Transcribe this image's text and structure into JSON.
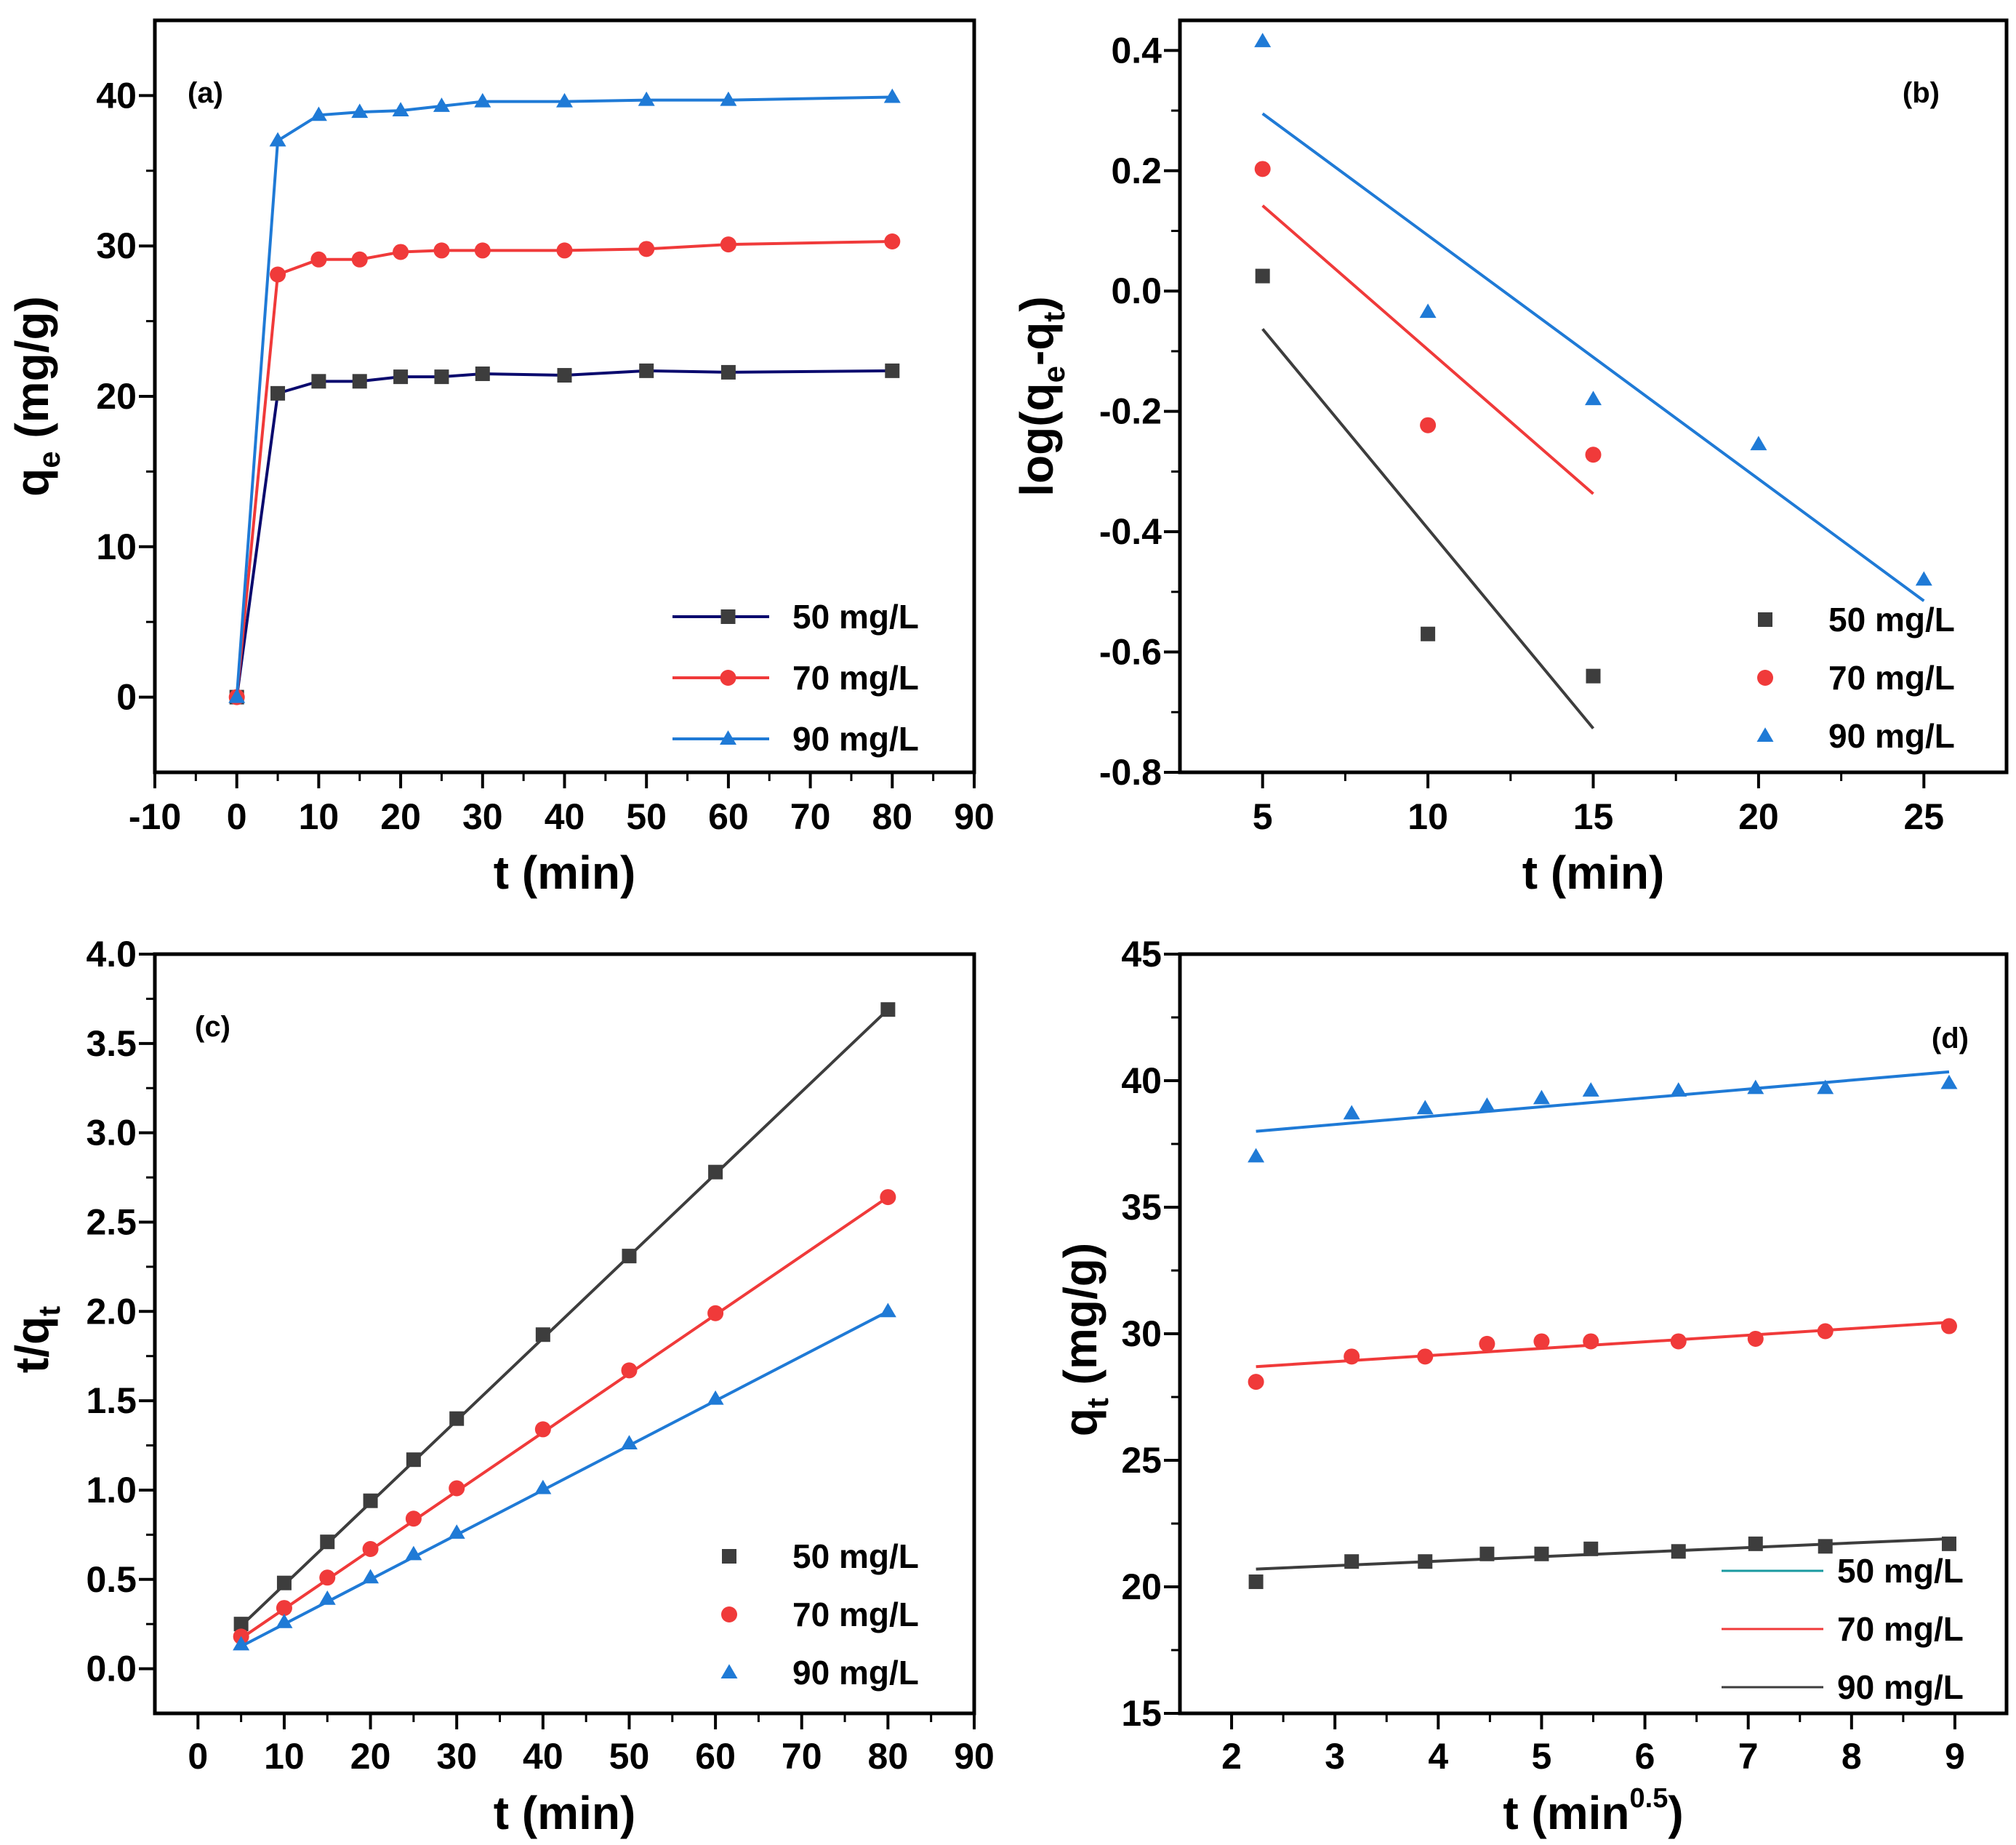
{
  "colors": {
    "black": "#3d3d3d",
    "navy": "#0a0a6e",
    "red": "#f03a3a",
    "blue": "#1f7ad6",
    "teal": "#1a9aa0"
  },
  "chart_data": [
    {
      "panel": "(a)",
      "type": "line",
      "xlabel": "t (min)",
      "ylabel": {
        "main": "q",
        "sub": "e",
        "rest": " (mg/g)"
      },
      "xlim": [
        -10,
        90
      ],
      "ylim": [
        -5,
        45
      ],
      "xticks": [
        "-10",
        "0",
        "10",
        "20",
        "30",
        "40",
        "50",
        "60",
        "70",
        "80",
        "90"
      ],
      "yticks": [
        "0",
        "10",
        "20",
        "30",
        "40"
      ],
      "x": [
        0,
        5,
        10,
        15,
        20,
        25,
        30,
        40,
        50,
        60,
        80
      ],
      "legend_position": "bottom-right",
      "series": [
        {
          "name": "50 mg/L",
          "marker": "square",
          "color_key": "navy",
          "marker_color_key": "black",
          "values": [
            0,
            20.2,
            21.0,
            21.0,
            21.3,
            21.3,
            21.5,
            21.4,
            21.7,
            21.6,
            21.7
          ]
        },
        {
          "name": "70 mg/L",
          "marker": "circle",
          "color_key": "red",
          "values": [
            0,
            28.1,
            29.1,
            29.1,
            29.6,
            29.7,
            29.7,
            29.7,
            29.8,
            30.1,
            30.3
          ]
        },
        {
          "name": "90 mg/L",
          "marker": "triangle",
          "color_key": "blue",
          "values": [
            0,
            37.0,
            38.7,
            38.9,
            39.0,
            39.3,
            39.6,
            39.6,
            39.7,
            39.7,
            39.9
          ]
        }
      ]
    },
    {
      "panel": "(b)",
      "type": "scatter",
      "xlabel": "t (min)",
      "ylabel": {
        "main": "log(q",
        "sub": "e",
        "mid": "-q",
        "sub2": "t",
        "rest": ")"
      },
      "xlim": [
        2.5,
        27.5
      ],
      "ylim": [
        -0.8,
        0.45
      ],
      "xticks": [
        "5",
        "10",
        "15",
        "20",
        "25"
      ],
      "yticks": [
        "-0.8",
        "-0.6",
        "-0.4",
        "-0.2",
        "0.0",
        "0.2",
        "0.4"
      ],
      "legend_position": "bottom-right",
      "series": [
        {
          "name": "50 mg/L",
          "marker": "square",
          "color_key": "black",
          "x": [
            5,
            10,
            15
          ],
          "values": [
            0.025,
            -0.57,
            -0.64
          ],
          "fit": [
            [
              5,
              -0.063
            ],
            [
              15,
              -0.727
            ]
          ]
        },
        {
          "name": "70 mg/L",
          "marker": "circle",
          "color_key": "red",
          "x": [
            5,
            10,
            15
          ],
          "values": [
            0.203,
            -0.223,
            -0.272
          ],
          "fit": [
            [
              5,
              0.142
            ],
            [
              15,
              -0.337
            ]
          ]
        },
        {
          "name": "90 mg/L",
          "marker": "triangle",
          "color_key": "blue",
          "x": [
            5,
            10,
            15,
            20,
            25
          ],
          "values": [
            0.415,
            -0.035,
            -0.18,
            -0.255,
            -0.48
          ],
          "fit": [
            [
              5,
              0.295
            ],
            [
              25,
              -0.515
            ]
          ]
        }
      ]
    },
    {
      "panel": "(c)",
      "type": "scatter",
      "xlabel": "t (min)",
      "ylabel": {
        "main": "t/q",
        "sub": "t",
        "rest": ""
      },
      "xlim": [
        -5,
        90
      ],
      "ylim": [
        -0.25,
        4.0
      ],
      "xticks": [
        "0",
        "10",
        "20",
        "30",
        "40",
        "50",
        "60",
        "70",
        "80",
        "90"
      ],
      "yticks": [
        "0.0",
        "0.5",
        "1.0",
        "1.5",
        "2.0",
        "2.5",
        "3.0",
        "3.5",
        "4.0"
      ],
      "legend_position": "bottom-right",
      "series": [
        {
          "name": "50 mg/L",
          "marker": "square",
          "color_key": "black",
          "x": [
            5,
            10,
            15,
            20,
            25,
            30,
            40,
            50,
            60,
            80
          ],
          "values": [
            0.25,
            0.48,
            0.71,
            0.94,
            1.17,
            1.4,
            1.87,
            2.31,
            2.78,
            3.69
          ],
          "fit": [
            [
              5,
              0.24
            ],
            [
              80,
              3.69
            ]
          ]
        },
        {
          "name": "70 mg/L",
          "marker": "circle",
          "color_key": "red",
          "x": [
            5,
            10,
            15,
            20,
            25,
            30,
            40,
            50,
            60,
            80
          ],
          "values": [
            0.18,
            0.34,
            0.51,
            0.67,
            0.84,
            1.01,
            1.34,
            1.67,
            1.99,
            2.64
          ],
          "fit": [
            [
              5,
              0.17
            ],
            [
              80,
              2.64
            ]
          ]
        },
        {
          "name": "90 mg/L",
          "marker": "triangle",
          "color_key": "blue",
          "x": [
            5,
            10,
            15,
            20,
            25,
            30,
            40,
            50,
            60,
            80
          ],
          "values": [
            0.135,
            0.26,
            0.39,
            0.51,
            0.64,
            0.76,
            1.01,
            1.26,
            1.51,
            2.0
          ],
          "fit": [
            [
              5,
              0.125
            ],
            [
              80,
              2.0
            ]
          ]
        }
      ]
    },
    {
      "panel": "(d)",
      "type": "scatter",
      "xlabel": {
        "main": "t (min",
        "sup": "0.5",
        "rest": ")"
      },
      "ylabel": {
        "main": "q",
        "sub": "t",
        "rest": " (mg/g)"
      },
      "xlim": [
        1.5,
        9.5
      ],
      "ylim": [
        15,
        45
      ],
      "xticks": [
        "2",
        "3",
        "4",
        "5",
        "6",
        "7",
        "8",
        "9"
      ],
      "yticks": [
        "15",
        "20",
        "25",
        "30",
        "35",
        "40",
        "45"
      ],
      "legend_position": "bottom-right",
      "legend": [
        {
          "name": "50 mg/L",
          "line_color_key": "teal"
        },
        {
          "name": "70 mg/L",
          "line_color_key": "red"
        },
        {
          "name": "90 mg/L",
          "line_color_key": "black"
        }
      ],
      "series": [
        {
          "marker": "square",
          "color_key": "black",
          "x": [
            2.236,
            3.162,
            3.873,
            4.472,
            5.0,
            5.477,
            6.325,
            7.071,
            7.746,
            8.944
          ],
          "values": [
            20.2,
            21.0,
            21.0,
            21.3,
            21.3,
            21.5,
            21.4,
            21.7,
            21.6,
            21.7
          ],
          "fit": [
            [
              2.236,
              20.7
            ],
            [
              8.944,
              21.9
            ]
          ]
        },
        {
          "marker": "circle",
          "color_key": "red",
          "x": [
            2.236,
            3.162,
            3.873,
            4.472,
            5.0,
            5.477,
            6.325,
            7.071,
            7.746,
            8.944
          ],
          "values": [
            28.1,
            29.1,
            29.1,
            29.6,
            29.7,
            29.7,
            29.7,
            29.8,
            30.1,
            30.3
          ],
          "fit": [
            [
              2.236,
              28.7
            ],
            [
              8.944,
              30.45
            ]
          ]
        },
        {
          "marker": "triangle",
          "color_key": "blue",
          "x": [
            2.236,
            3.162,
            3.873,
            4.472,
            5.0,
            5.477,
            6.325,
            7.071,
            7.746,
            8.944
          ],
          "values": [
            37.0,
            38.7,
            38.9,
            39.0,
            39.3,
            39.6,
            39.6,
            39.7,
            39.7,
            39.9
          ],
          "fit": [
            [
              2.236,
              38.0
            ],
            [
              8.944,
              40.35
            ]
          ]
        }
      ]
    }
  ]
}
